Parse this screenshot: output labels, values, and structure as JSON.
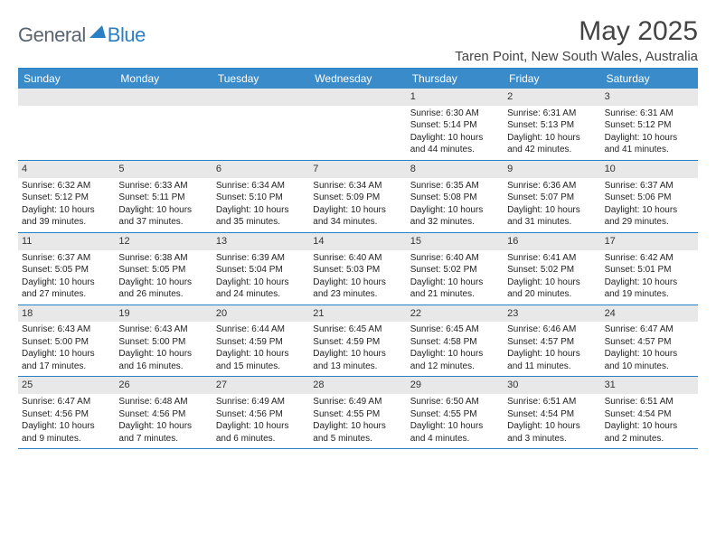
{
  "logo": {
    "text1": "General",
    "text2": "Blue"
  },
  "title": "May 2025",
  "location": "Taren Point, New South Wales, Australia",
  "header_bg": "#3a8bc9",
  "border_color": "#2b7fc3",
  "daynum_bg": "#e8e8e8",
  "days": [
    "Sunday",
    "Monday",
    "Tuesday",
    "Wednesday",
    "Thursday",
    "Friday",
    "Saturday"
  ],
  "weeks": [
    [
      null,
      null,
      null,
      null,
      {
        "n": "1",
        "sr": "6:30 AM",
        "ss": "5:14 PM",
        "dl": "10 hours and 44 minutes."
      },
      {
        "n": "2",
        "sr": "6:31 AM",
        "ss": "5:13 PM",
        "dl": "10 hours and 42 minutes."
      },
      {
        "n": "3",
        "sr": "6:31 AM",
        "ss": "5:12 PM",
        "dl": "10 hours and 41 minutes."
      }
    ],
    [
      {
        "n": "4",
        "sr": "6:32 AM",
        "ss": "5:12 PM",
        "dl": "10 hours and 39 minutes."
      },
      {
        "n": "5",
        "sr": "6:33 AM",
        "ss": "5:11 PM",
        "dl": "10 hours and 37 minutes."
      },
      {
        "n": "6",
        "sr": "6:34 AM",
        "ss": "5:10 PM",
        "dl": "10 hours and 35 minutes."
      },
      {
        "n": "7",
        "sr": "6:34 AM",
        "ss": "5:09 PM",
        "dl": "10 hours and 34 minutes."
      },
      {
        "n": "8",
        "sr": "6:35 AM",
        "ss": "5:08 PM",
        "dl": "10 hours and 32 minutes."
      },
      {
        "n": "9",
        "sr": "6:36 AM",
        "ss": "5:07 PM",
        "dl": "10 hours and 31 minutes."
      },
      {
        "n": "10",
        "sr": "6:37 AM",
        "ss": "5:06 PM",
        "dl": "10 hours and 29 minutes."
      }
    ],
    [
      {
        "n": "11",
        "sr": "6:37 AM",
        "ss": "5:05 PM",
        "dl": "10 hours and 27 minutes."
      },
      {
        "n": "12",
        "sr": "6:38 AM",
        "ss": "5:05 PM",
        "dl": "10 hours and 26 minutes."
      },
      {
        "n": "13",
        "sr": "6:39 AM",
        "ss": "5:04 PM",
        "dl": "10 hours and 24 minutes."
      },
      {
        "n": "14",
        "sr": "6:40 AM",
        "ss": "5:03 PM",
        "dl": "10 hours and 23 minutes."
      },
      {
        "n": "15",
        "sr": "6:40 AM",
        "ss": "5:02 PM",
        "dl": "10 hours and 21 minutes."
      },
      {
        "n": "16",
        "sr": "6:41 AM",
        "ss": "5:02 PM",
        "dl": "10 hours and 20 minutes."
      },
      {
        "n": "17",
        "sr": "6:42 AM",
        "ss": "5:01 PM",
        "dl": "10 hours and 19 minutes."
      }
    ],
    [
      {
        "n": "18",
        "sr": "6:43 AM",
        "ss": "5:00 PM",
        "dl": "10 hours and 17 minutes."
      },
      {
        "n": "19",
        "sr": "6:43 AM",
        "ss": "5:00 PM",
        "dl": "10 hours and 16 minutes."
      },
      {
        "n": "20",
        "sr": "6:44 AM",
        "ss": "4:59 PM",
        "dl": "10 hours and 15 minutes."
      },
      {
        "n": "21",
        "sr": "6:45 AM",
        "ss": "4:59 PM",
        "dl": "10 hours and 13 minutes."
      },
      {
        "n": "22",
        "sr": "6:45 AM",
        "ss": "4:58 PM",
        "dl": "10 hours and 12 minutes."
      },
      {
        "n": "23",
        "sr": "6:46 AM",
        "ss": "4:57 PM",
        "dl": "10 hours and 11 minutes."
      },
      {
        "n": "24",
        "sr": "6:47 AM",
        "ss": "4:57 PM",
        "dl": "10 hours and 10 minutes."
      }
    ],
    [
      {
        "n": "25",
        "sr": "6:47 AM",
        "ss": "4:56 PM",
        "dl": "10 hours and 9 minutes."
      },
      {
        "n": "26",
        "sr": "6:48 AM",
        "ss": "4:56 PM",
        "dl": "10 hours and 7 minutes."
      },
      {
        "n": "27",
        "sr": "6:49 AM",
        "ss": "4:56 PM",
        "dl": "10 hours and 6 minutes."
      },
      {
        "n": "28",
        "sr": "6:49 AM",
        "ss": "4:55 PM",
        "dl": "10 hours and 5 minutes."
      },
      {
        "n": "29",
        "sr": "6:50 AM",
        "ss": "4:55 PM",
        "dl": "10 hours and 4 minutes."
      },
      {
        "n": "30",
        "sr": "6:51 AM",
        "ss": "4:54 PM",
        "dl": "10 hours and 3 minutes."
      },
      {
        "n": "31",
        "sr": "6:51 AM",
        "ss": "4:54 PM",
        "dl": "10 hours and 2 minutes."
      }
    ]
  ],
  "labels": {
    "sunrise": "Sunrise: ",
    "sunset": "Sunset: ",
    "daylight": "Daylight: "
  }
}
